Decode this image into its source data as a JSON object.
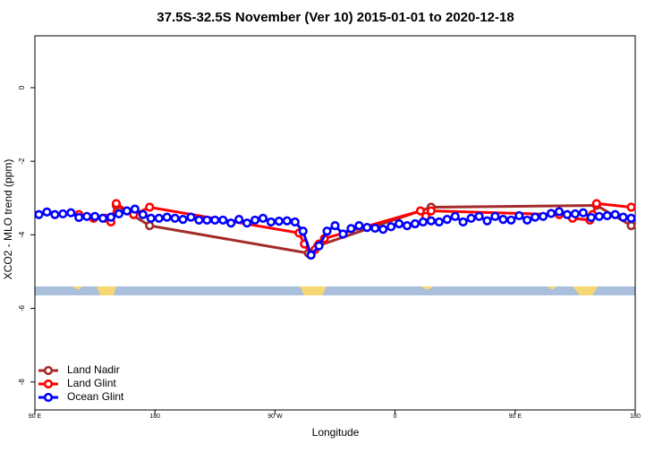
{
  "chart_data": {
    "type": "line",
    "title": "37.5S-32.5S November (Ver 10)   2015-01-01 to 2020-12-18",
    "xlabel": "Longitude",
    "ylabel": "XCO2 - MLO trend (ppm)",
    "xlim": [
      90,
      540
    ],
    "ylim": [
      -8.76,
      1.41
    ],
    "xticks": [
      {
        "value": 90,
        "label": "90 E"
      },
      {
        "value": 180,
        "label": "180"
      },
      {
        "value": 270,
        "label": "90 W"
      },
      {
        "value": 360,
        "label": "0"
      },
      {
        "value": 450,
        "label": "90 E"
      },
      {
        "value": 540,
        "label": "180"
      }
    ],
    "yticks": [
      0,
      -2,
      -4,
      -6,
      -8
    ],
    "legend": "bottom-left",
    "series": [
      {
        "name": "Land Nadir",
        "color": "#a52a2a",
        "x": [
          151,
          176,
          295,
          302,
          387,
          511,
          537
        ],
        "values": [
          -3.2,
          -3.75,
          -4.5,
          -4.3,
          -3.25,
          -3.2,
          -3.75
        ]
      },
      {
        "name": "Land Glint",
        "color": "#ff0000",
        "x": [
          123,
          134,
          143,
          147,
          151,
          164,
          176,
          288,
          292,
          297,
          300,
          303,
          307,
          379,
          383,
          387,
          483,
          493,
          506,
          508,
          511,
          537
        ],
        "values": [
          -3.45,
          -3.55,
          -3.55,
          -3.65,
          -3.15,
          -3.45,
          -3.25,
          -3.95,
          -4.25,
          -4.55,
          -4.4,
          -4.25,
          -4.1,
          -3.35,
          -3.5,
          -3.35,
          -3.45,
          -3.55,
          -3.6,
          -3.45,
          -3.15,
          -3.25
        ]
      },
      {
        "name": "Ocean Glint",
        "color": "#0000ff",
        "x": [
          93,
          99,
          105,
          111,
          117,
          123,
          129,
          135,
          141,
          147,
          153,
          159,
          165,
          171,
          177,
          183,
          189,
          195,
          201,
          207,
          213,
          219,
          225,
          231,
          237,
          243,
          249,
          255,
          261,
          267,
          273,
          279,
          285,
          291,
          297,
          303,
          309,
          315,
          321,
          327,
          333,
          339,
          345,
          351,
          357,
          363,
          369,
          375,
          381,
          387,
          393,
          399,
          405,
          411,
          417,
          423,
          429,
          435,
          441,
          447,
          453,
          459,
          465,
          471,
          477,
          483,
          489,
          495,
          501,
          507,
          513,
          519,
          525,
          531,
          537
        ],
        "values": [
          -3.45,
          -3.38,
          -3.45,
          -3.43,
          -3.4,
          -3.53,
          -3.5,
          -3.5,
          -3.55,
          -3.52,
          -3.43,
          -3.35,
          -3.3,
          -3.45,
          -3.55,
          -3.55,
          -3.52,
          -3.55,
          -3.58,
          -3.52,
          -3.6,
          -3.6,
          -3.6,
          -3.6,
          -3.68,
          -3.58,
          -3.68,
          -3.6,
          -3.55,
          -3.65,
          -3.63,
          -3.62,
          -3.65,
          -3.9,
          -4.55,
          -4.3,
          -3.9,
          -3.75,
          -3.98,
          -3.83,
          -3.75,
          -3.8,
          -3.82,
          -3.85,
          -3.78,
          -3.7,
          -3.75,
          -3.7,
          -3.65,
          -3.62,
          -3.65,
          -3.58,
          -3.5,
          -3.65,
          -3.55,
          -3.5,
          -3.62,
          -3.5,
          -3.58,
          -3.6,
          -3.48,
          -3.6,
          -3.52,
          -3.5,
          -3.42,
          -3.37,
          -3.45,
          -3.43,
          -3.4,
          -3.53,
          -3.5,
          -3.48,
          -3.45,
          -3.52,
          -3.55
        ]
      }
    ]
  }
}
